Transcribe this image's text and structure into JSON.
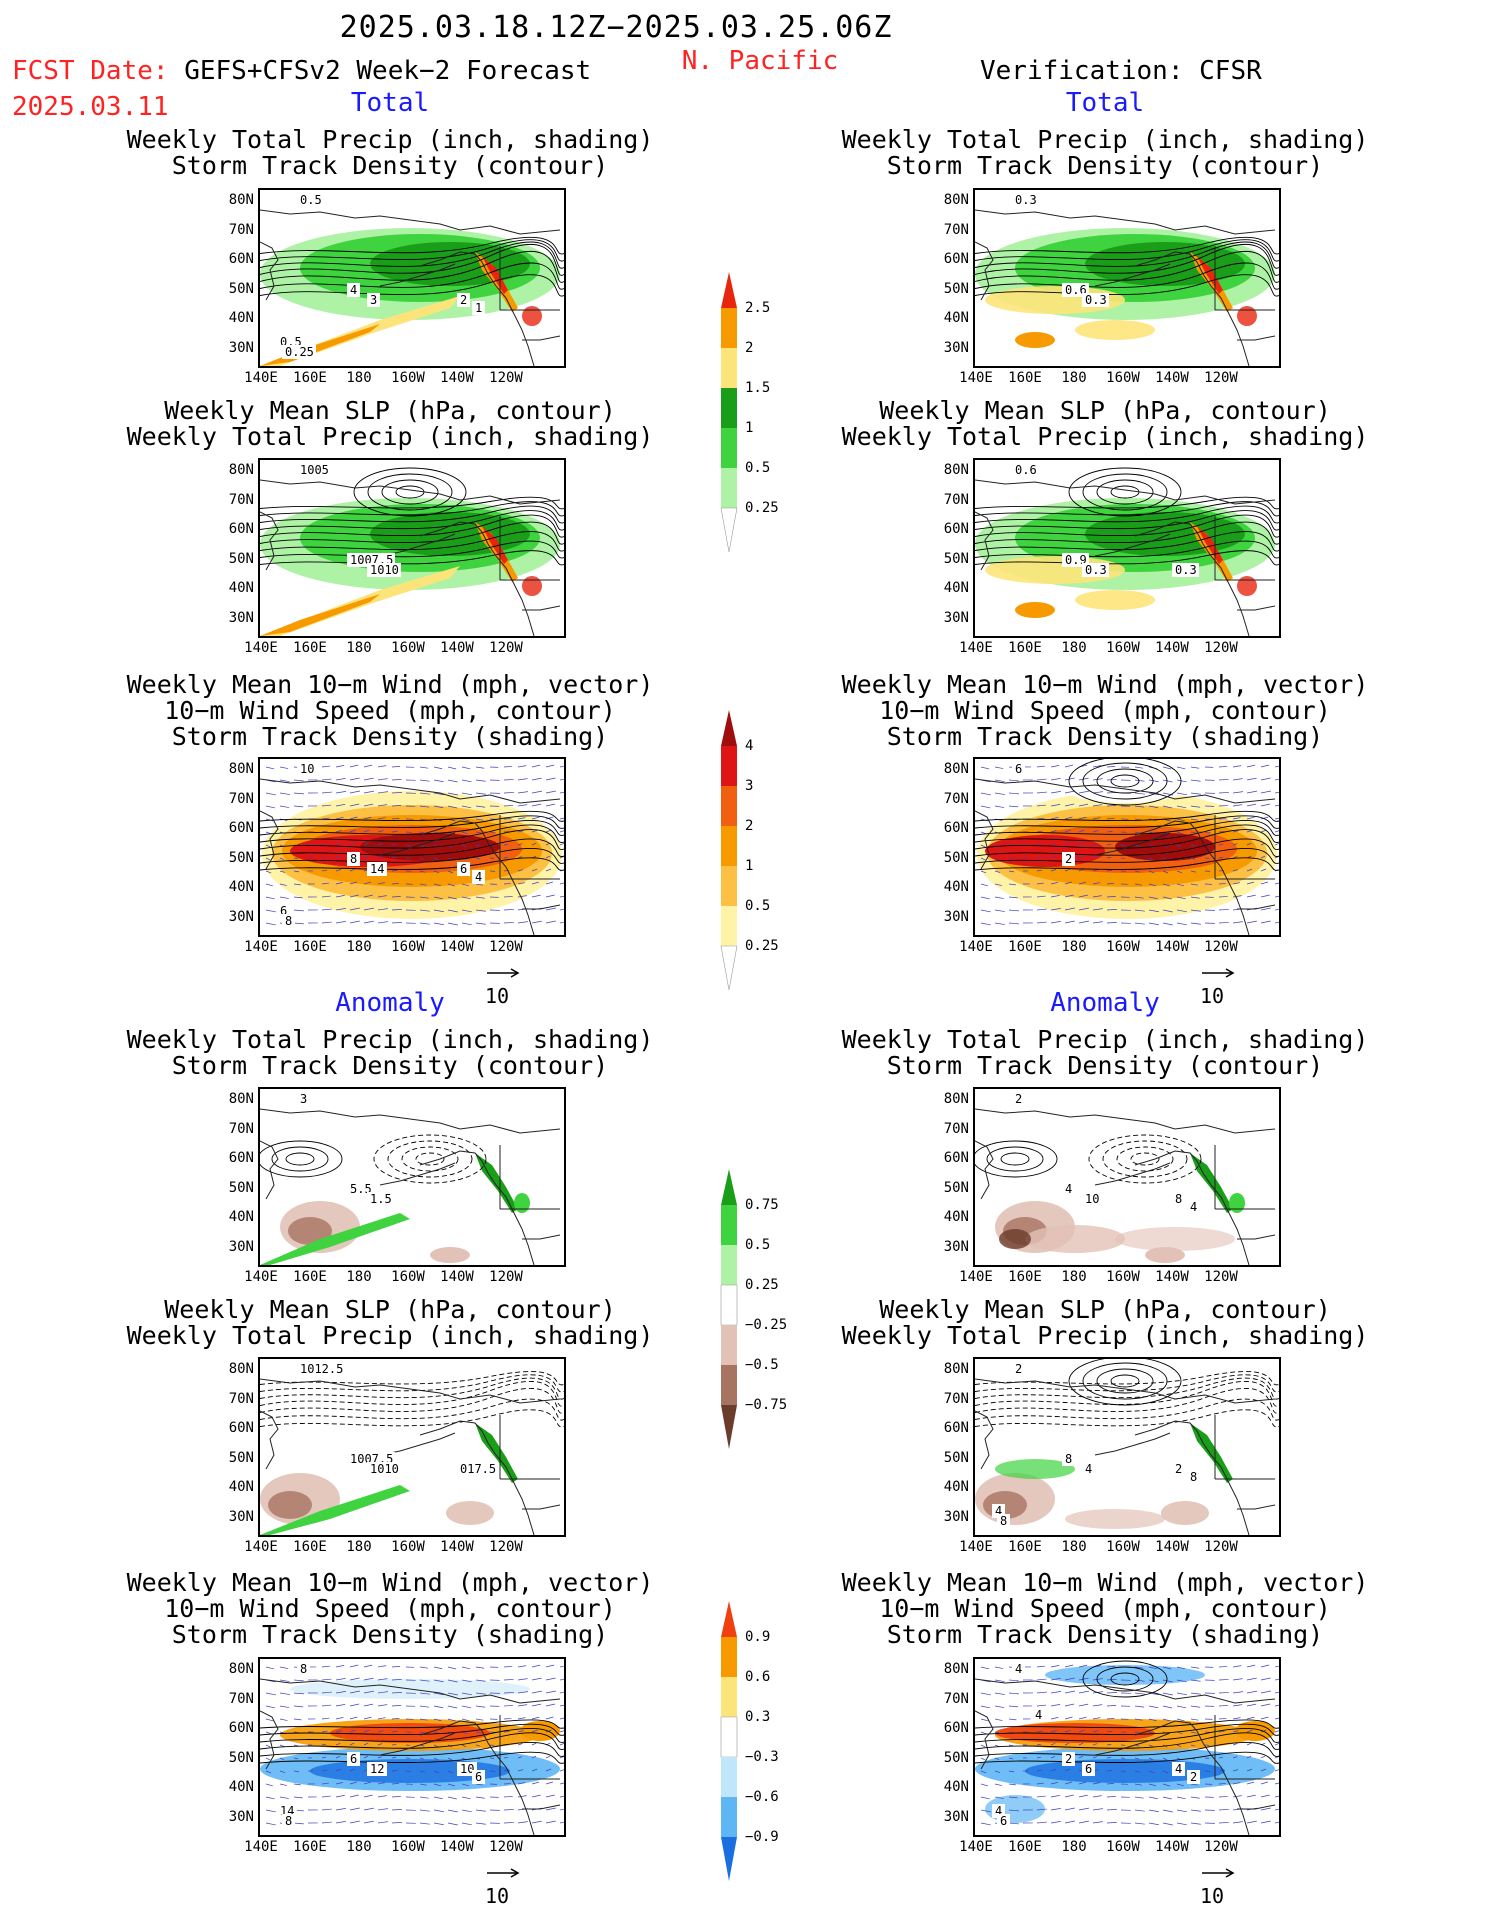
{
  "header": {
    "date_range": "2025.03.18.12Z−2025.03.25.06Z",
    "fcst_label": "FCST Date:",
    "fcst_model": "GEFS+CFSv2 Week−2 Forecast",
    "fcst_date": "2025.03.11",
    "region": "N. Pacific",
    "verification": "Verification: CFSR"
  },
  "sections": {
    "total": "Total",
    "anomaly": "Anomaly"
  },
  "panel_titles": {
    "precip_track": "Weekly Total Precip (inch, shading)\nStorm Track Density (contour)",
    "slp_precip": "Weekly Mean SLP (hPa, contour)\nWeekly Total Precip (inch, shading)",
    "wind_track": "Weekly Mean 10−m Wind (mph, vector)\n10−m Wind Speed (mph, contour)\nStorm Track Density (shading)"
  },
  "axes": {
    "lat": [
      "80N",
      "70N",
      "60N",
      "50N",
      "40N",
      "30N"
    ],
    "lon": [
      "140E",
      "160E",
      "180",
      "160W",
      "140W",
      "120W"
    ]
  },
  "vector_ref": "10",
  "colorbars": {
    "precip_total": {
      "labels": [
        "2.5",
        "2",
        "1.5",
        "1",
        "0.5",
        "0.25"
      ],
      "colors": [
        "#e8260f",
        "#f79a00",
        "#fde47a",
        "#1a9e1a",
        "#3fd33f",
        "#aef2a6",
        "#ffffff"
      ]
    },
    "track_total": {
      "labels": [
        "4",
        "3",
        "2",
        "1",
        "0.5",
        "0.25"
      ],
      "colors": [
        "#a00d0d",
        "#dd1515",
        "#f06010",
        "#f79a00",
        "#fcc045",
        "#fff3a8",
        "#ffffff"
      ]
    },
    "precip_anom": {
      "labels": [
        "0.75",
        "0.5",
        "0.25",
        "−0.25",
        "−0.5",
        "−0.75"
      ],
      "colors": [
        "#1a9e1a",
        "#3fd33f",
        "#aef2a6",
        "#ffffff",
        "#e2c2b6",
        "#a87462",
        "#6b3b2b"
      ]
    },
    "track_anom": {
      "labels": [
        "0.9",
        "0.6",
        "0.3",
        "−0.3",
        "−0.6",
        "−0.9"
      ],
      "colors": [
        "#f04010",
        "#f79a00",
        "#fde47a",
        "#ffffff",
        "#bfe6fa",
        "#5fb6f5",
        "#1a6fe0"
      ]
    }
  },
  "contour_labels": {
    "p1": [
      "0.5",
      "4",
      "3",
      "2",
      "1",
      "0.5",
      "0.25"
    ],
    "p2": [
      "1005",
      "1007.5",
      "1010"
    ],
    "p3": [
      "10",
      "8",
      "14",
      "6",
      "4",
      "6",
      "8"
    ],
    "p4": [
      "3",
      "5.5",
      "1.5"
    ],
    "p5": [
      "1012.5",
      "1007.5",
      "1010",
      "017.5"
    ],
    "p6": [
      "8",
      "6",
      "12",
      "10",
      "6",
      "14",
      "8"
    ],
    "p7": [
      "0.3",
      "0.6",
      "0.3"
    ],
    "p8": [
      "0.6",
      "0.9",
      "0.3",
      "0.3"
    ],
    "p9": [
      "6",
      "2"
    ],
    "p10": [
      "2",
      "4",
      "10",
      "8",
      "4"
    ],
    "p11": [
      "2",
      "8",
      "4",
      "2",
      "8",
      "4",
      "8"
    ],
    "p12": [
      "4",
      "2",
      "6",
      "4",
      "2",
      "4",
      "6",
      "4"
    ]
  }
}
